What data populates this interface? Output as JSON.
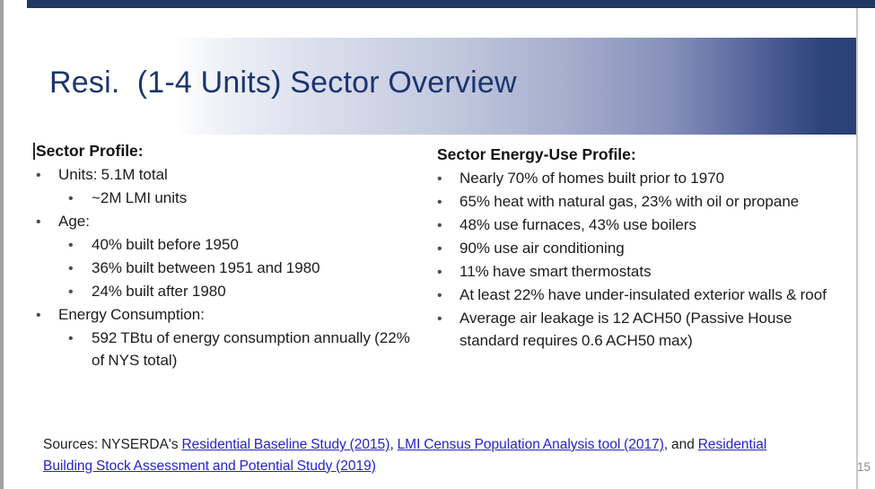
{
  "slide": {
    "title": "Resi.  (1-4 Units) Sector Overview",
    "page_number": "15"
  },
  "left_column": {
    "heading": "Sector Profile:",
    "items": [
      {
        "level": 1,
        "text": "Units: 5.1M total"
      },
      {
        "level": 2,
        "text": "~2M LMI units"
      },
      {
        "level": 1,
        "text": "Age:"
      },
      {
        "level": 2,
        "text": "40% built before 1950"
      },
      {
        "level": 2,
        "text": "36% built between 1951 and 1980"
      },
      {
        "level": 2,
        "text": "24% built after 1980"
      },
      {
        "level": 1,
        "text": "Energy Consumption:"
      },
      {
        "level": 2,
        "text": "592 TBtu of energy consumption annually (22% of NYS total)"
      }
    ]
  },
  "right_column": {
    "heading": "Sector Energy-Use Profile:",
    "items": [
      {
        "level": 1,
        "text": "Nearly 70% of homes built prior to 1970"
      },
      {
        "level": 1,
        "text": "65% heat with natural gas, 23% with oil or propane"
      },
      {
        "level": 1,
        "text": "48% use furnaces, 43% use boilers"
      },
      {
        "level": 1,
        "text": "90% use air conditioning"
      },
      {
        "level": 1,
        "text": "11% have smart thermostats"
      },
      {
        "level": 1,
        "text": "At least 22% have under-insulated exterior walls & roof"
      },
      {
        "level": 1,
        "text": "Average air leakage is 12 ACH50 (Passive House standard requires 0.6 ACH50 max)"
      }
    ]
  },
  "sources": {
    "prefix": "Sources: NYSERDA's ",
    "link1": "Residential Baseline Study (2015)",
    "separator1": ", ",
    "link2": "LMI Census Population Analysis tool (2017)",
    "separator2": ", and ",
    "link3": "Residential Building Stock Assessment and Potential Study (2019)"
  },
  "colors": {
    "brand_navy": "#1f3864",
    "title_text": "#1b3570",
    "band_gradient_end": "#2a4076",
    "link_blue": "#2323cc",
    "body_text": "#1c1c1c",
    "page_number_gray": "#8a8a8a",
    "left_edge_gray": "#a2a2a2"
  }
}
